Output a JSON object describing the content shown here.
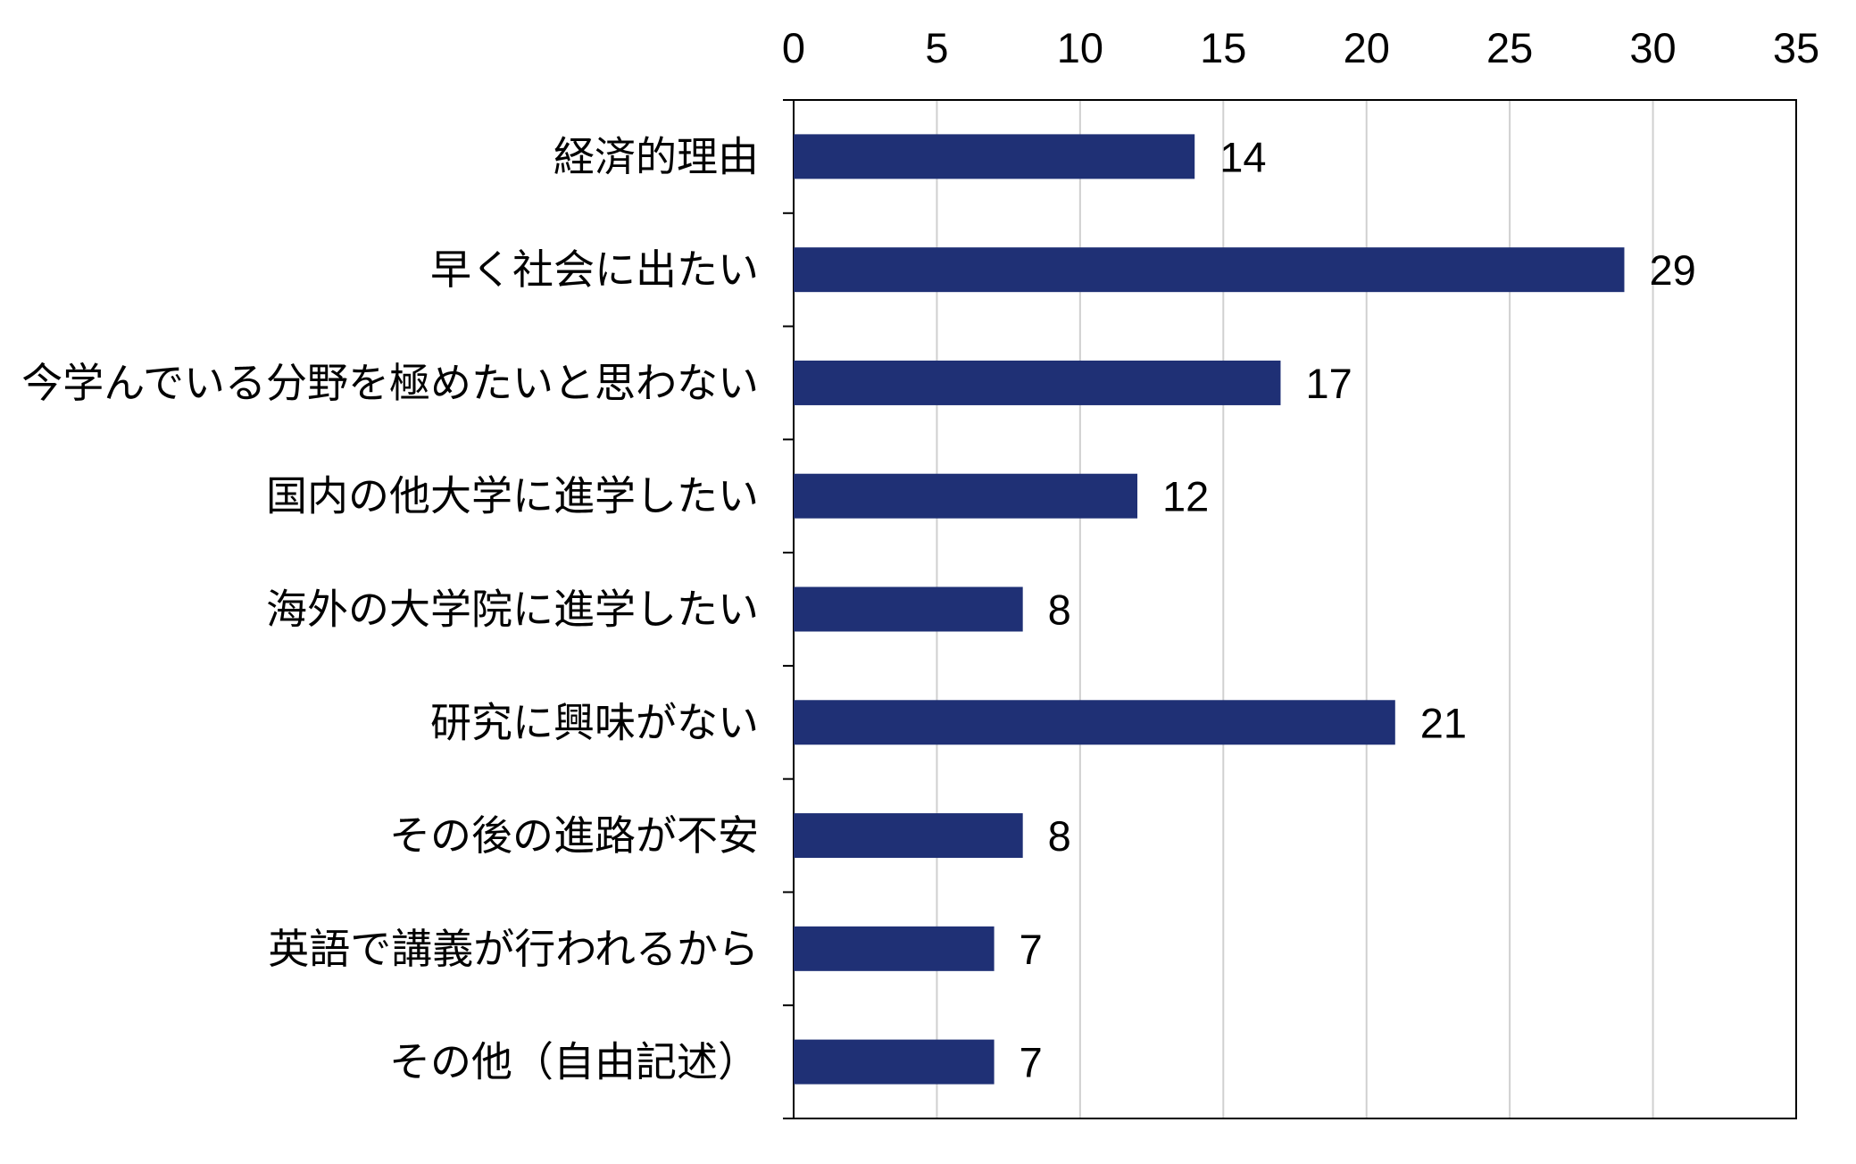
{
  "chart_data": {
    "type": "bar",
    "orientation": "horizontal",
    "x_axis_position": "top",
    "categories": [
      "経済的理由",
      "早く社会に出たい",
      "今学んでいる分野を極めたいと思わない",
      "国内の他大学に進学したい",
      "海外の大学院に進学したい",
      "研究に興味がない",
      "その後の進路が不安",
      "英語で講義が行われるから",
      "その他（自由記述）"
    ],
    "values": [
      14,
      29,
      17,
      12,
      8,
      21,
      8,
      7,
      7
    ],
    "xlim": [
      0,
      35
    ],
    "ticks": [
      "0",
      "5",
      "10",
      "15",
      "20",
      "25",
      "30",
      "35"
    ],
    "title": "",
    "xlabel": "",
    "ylabel": "",
    "grid": "vertical",
    "legend": "none",
    "data_labels": true
  },
  "colors": {
    "bar": "#1f3075",
    "grid": "#d0d0d0",
    "axis": "#000000",
    "background": "#ffffff"
  }
}
